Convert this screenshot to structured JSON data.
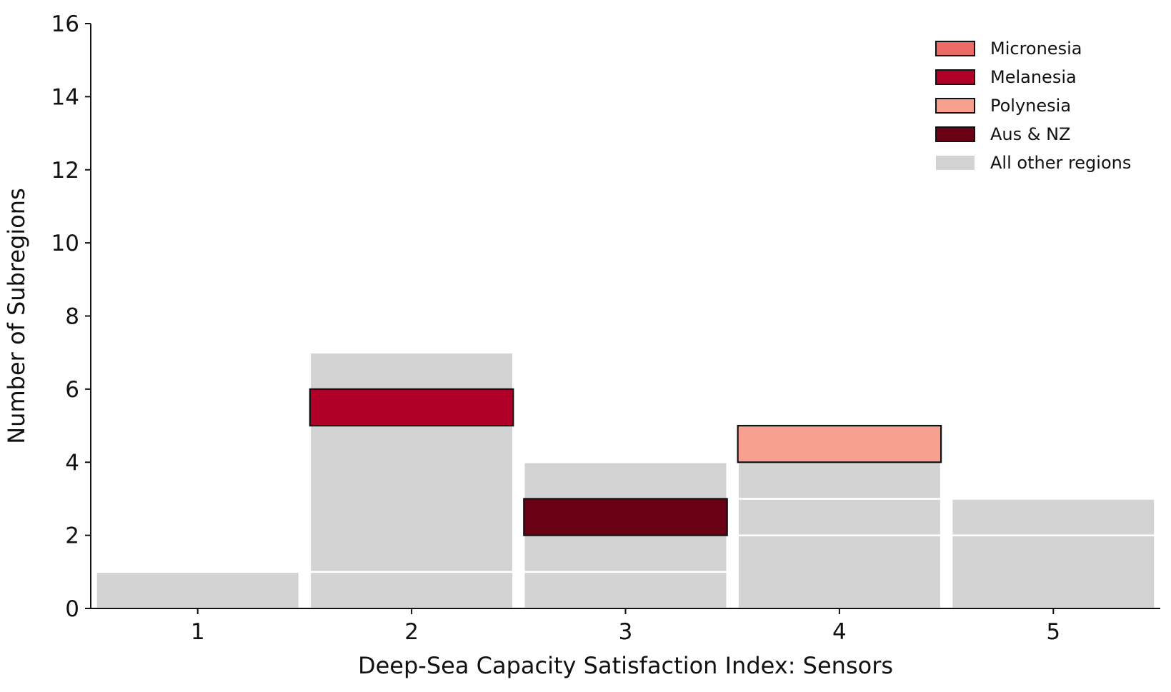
{
  "chart_data": {
    "type": "bar",
    "title": "",
    "xlabel": "Deep-Sea Capacity Satisfaction Index: Sensors",
    "ylabel": "Number of Subregions",
    "xlim": [
      0.5,
      5.5
    ],
    "ylim": [
      0,
      16
    ],
    "x_ticks": [
      "1",
      "2",
      "3",
      "4",
      "5"
    ],
    "y_ticks": [
      "0",
      "2",
      "4",
      "6",
      "8",
      "10",
      "12",
      "14",
      "16"
    ],
    "grid": false,
    "legend": {
      "placement": "top-right",
      "entries": [
        {
          "name": "Micronesia",
          "color": "#ec6b67"
        },
        {
          "name": "Melanesia",
          "color": "#b0002a"
        },
        {
          "name": "Polynesia",
          "color": "#f8a08f"
        },
        {
          "name": "Aus & NZ",
          "color": "#690014"
        },
        {
          "name": "All other regions",
          "color": "#d3d3d3"
        }
      ]
    },
    "background": {
      "name": "All other regions",
      "color": "#d3d3d3",
      "stacked_segment_bounds": [
        {
          "x": 1,
          "segments": [
            [
              0,
              1
            ]
          ]
        },
        {
          "x": 2,
          "segments": [
            [
              0,
              1
            ],
            [
              1,
              7
            ]
          ]
        },
        {
          "x": 3,
          "segments": [
            [
              0,
              1
            ],
            [
              1,
              4
            ]
          ]
        },
        {
          "x": 4,
          "segments": [
            [
              0,
              2
            ],
            [
              2,
              3
            ],
            [
              3,
              4
            ]
          ]
        },
        {
          "x": 5,
          "segments": [
            [
              0,
              2
            ],
            [
              2,
              3
            ]
          ]
        }
      ]
    },
    "highlighted_bars": [
      {
        "name": "Melanesia",
        "x": 2,
        "y0": 5,
        "y1": 6,
        "color": "#b0002a"
      },
      {
        "name": "Aus & NZ",
        "x": 3,
        "y0": 2,
        "y1": 3,
        "color": "#690014"
      },
      {
        "name": "Polynesia",
        "x": 4,
        "y0": 4,
        "y1": 5,
        "color": "#f8a08f"
      }
    ]
  }
}
